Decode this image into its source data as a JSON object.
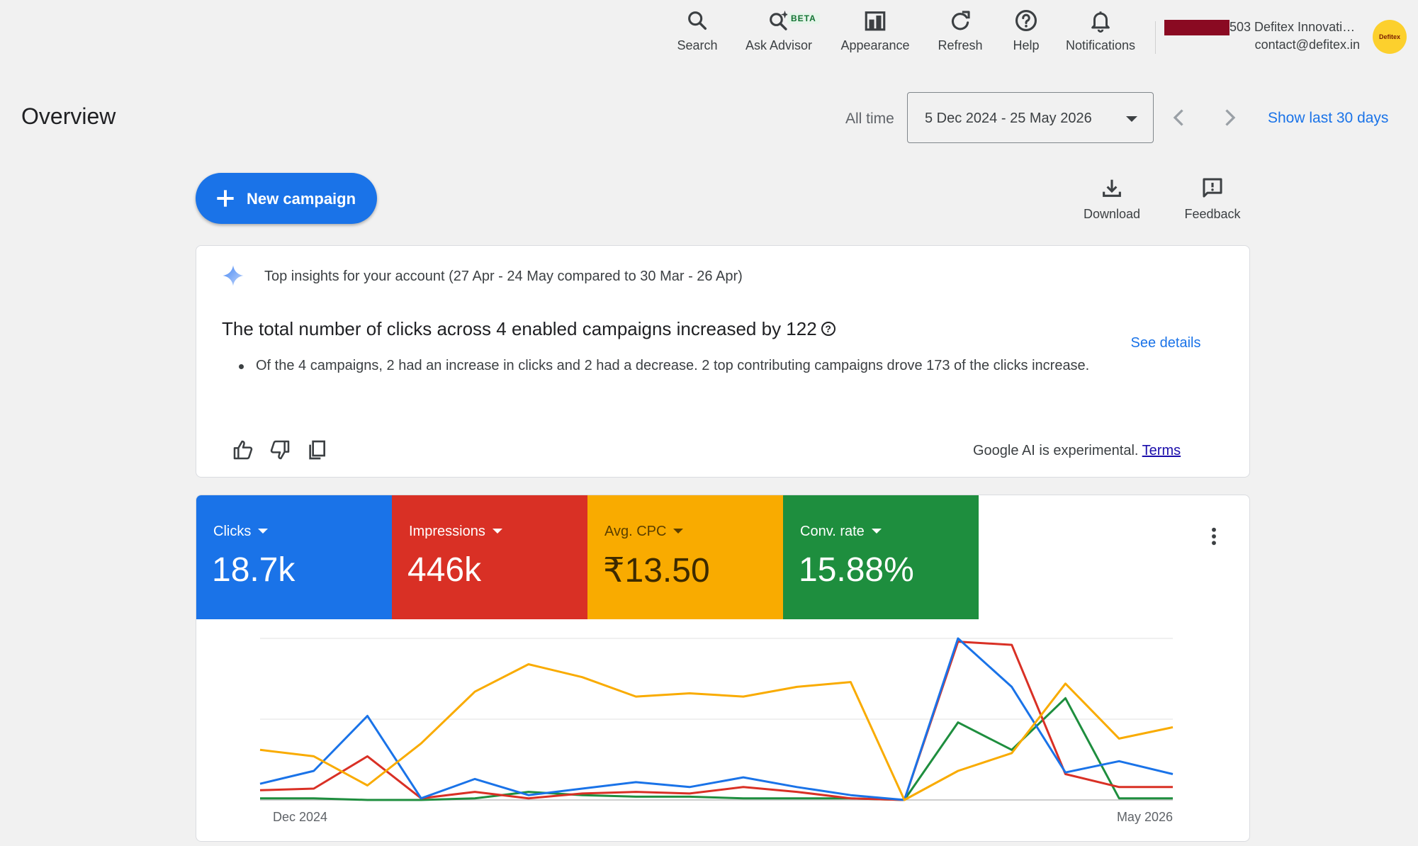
{
  "toolbar": {
    "items": [
      {
        "label": "Search",
        "icon": "search-icon"
      },
      {
        "label": "Ask Advisor",
        "icon": "ask-advisor-icon",
        "badge": "BETA"
      },
      {
        "label": "Appearance",
        "icon": "appearance-icon"
      },
      {
        "label": "Refresh",
        "icon": "refresh-icon"
      },
      {
        "label": "Help",
        "icon": "help-icon"
      },
      {
        "label": "Notifications",
        "icon": "bell-icon"
      }
    ]
  },
  "account": {
    "name": "503 Defitex Innovati…",
    "email": "contact@defitex.in",
    "avatar_text": "Defitex"
  },
  "header": {
    "title": "Overview",
    "all_time": "All time",
    "date_range": "5 Dec 2024 - 25 May 2026",
    "show_last": "Show last 30 days"
  },
  "actions": {
    "new_campaign": "New campaign",
    "download": "Download",
    "feedback": "Feedback"
  },
  "insights": {
    "heading": "Top insights for your account (27 Apr - 24 May compared to 30 Mar - 26 Apr)",
    "title": "The total number of clicks across 4 enabled campaigns increased by 122",
    "bullet": "Of the 4 campaigns, 2 had an increase in clicks and 2 had a decrease. 2 top contributing campaigns drove 173 of the clicks increase.",
    "see_details": "See details",
    "ai_note": "Google AI is experimental.",
    "terms": "Terms"
  },
  "metrics": [
    {
      "label": "Clicks",
      "value": "18.7k",
      "color": "#1a73e8"
    },
    {
      "label": "Impressions",
      "value": "446k",
      "color": "#d93025"
    },
    {
      "label": "Avg. CPC",
      "value": "₹13.50",
      "color": "#f9ab00"
    },
    {
      "label": "Conv. rate",
      "value": "15.88%",
      "color": "#1e8e3e"
    }
  ],
  "chart_data": {
    "type": "line",
    "x_start_label": "Dec 2024",
    "x_end_label": "May 2026",
    "normalized": true,
    "ylim": [
      0,
      100
    ],
    "grid": true,
    "series": [
      {
        "name": "Clicks",
        "color": "#1a73e8",
        "values": [
          10,
          18,
          52,
          1,
          13,
          3,
          7,
          11,
          8,
          14,
          8,
          3,
          0,
          100,
          70,
          17,
          24,
          16
        ]
      },
      {
        "name": "Impressions",
        "color": "#d93025",
        "values": [
          6,
          7,
          27,
          1,
          5,
          1,
          4,
          5,
          4,
          8,
          5,
          1,
          0,
          98,
          96,
          16,
          8,
          8
        ]
      },
      {
        "name": "Avg. CPC",
        "color": "#f9ab00",
        "values": [
          31,
          27,
          9,
          35,
          67,
          84,
          76,
          64,
          66,
          64,
          70,
          73,
          0,
          18,
          29,
          72,
          38,
          45
        ]
      },
      {
        "name": "Conv. rate",
        "color": "#1e8e3e",
        "values": [
          1,
          1,
          0,
          0,
          1,
          5,
          3,
          2,
          2,
          1,
          1,
          1,
          0,
          48,
          31,
          63,
          1,
          1
        ]
      }
    ]
  }
}
